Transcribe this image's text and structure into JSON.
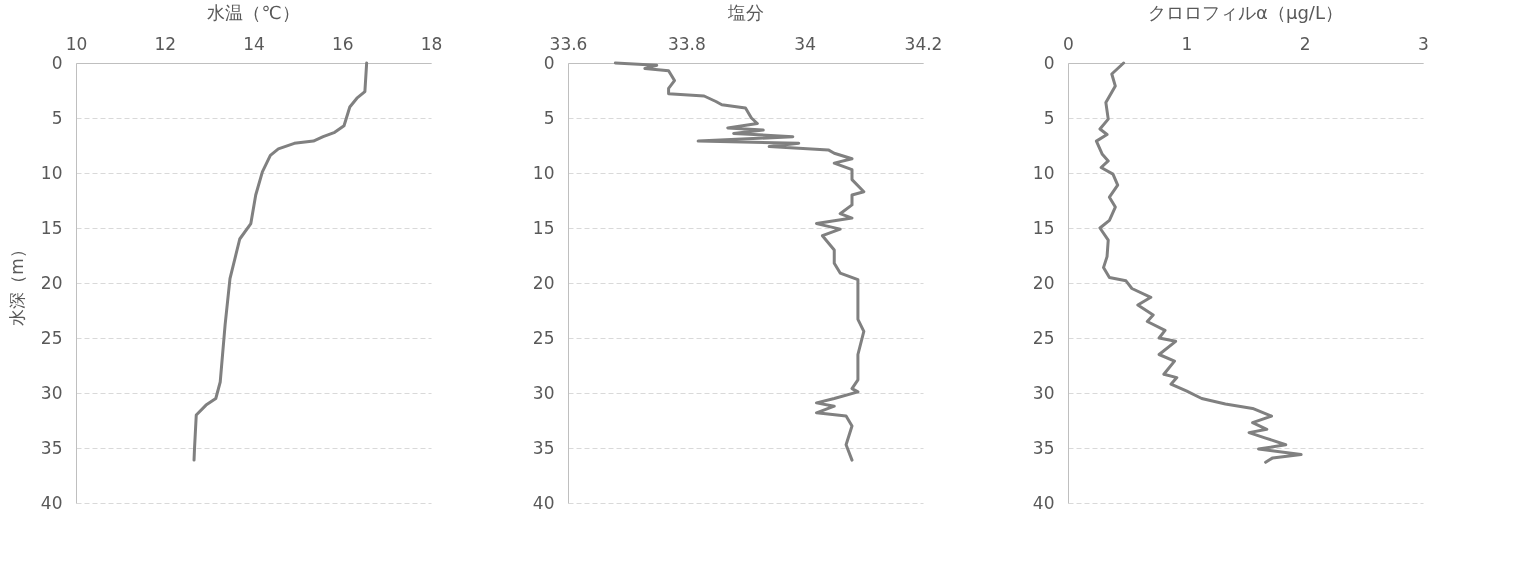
{
  "chart_data": [
    {
      "type": "line",
      "title": "水温（℃）",
      "ylabel": "水深（m）",
      "xlim": [
        10,
        18
      ],
      "xticks": [
        10,
        12,
        14,
        16,
        18
      ],
      "ylim": [
        40,
        0
      ],
      "yticks": [
        0,
        5,
        10,
        15,
        20,
        25,
        30,
        35,
        40
      ],
      "grid": "y",
      "line_style": "solid",
      "marker": "none",
      "series": [
        {
          "color": "#808080",
          "x": [
            16.55,
            16.51,
            16.33,
            16.17,
            16.04,
            15.83,
            15.57,
            15.35,
            14.92,
            14.56,
            14.38,
            14.2,
            14.05,
            13.94,
            13.69,
            13.58,
            13.47,
            13.36,
            13.25,
            13.15,
            12.93,
            12.71,
            12.67,
            12.66
          ],
          "values": [
            0,
            2.6,
            3.2,
            4.0,
            5.7,
            6.3,
            6.7,
            7.1,
            7.3,
            7.8,
            8.4,
            9.9,
            12.0,
            14.6,
            16.0,
            17.8,
            19.6,
            23.8,
            29.0,
            30.5,
            31.1,
            32.0,
            35.1,
            36.1
          ]
        }
      ]
    },
    {
      "type": "line",
      "title": "塩分",
      "xlim": [
        33.6,
        34.2
      ],
      "xticks": [
        33.6,
        33.8,
        34,
        34.2
      ],
      "ylim": [
        40,
        0
      ],
      "yticks": [
        0,
        5,
        10,
        15,
        20,
        25,
        30,
        35,
        40
      ],
      "grid": "y",
      "line_style": "solid",
      "marker": "none",
      "series": [
        {
          "color": "#808080",
          "x": [
            33.68,
            33.75,
            33.73,
            33.77,
            33.78,
            33.77,
            33.77,
            33.83,
            33.85,
            33.86,
            33.9,
            33.91,
            33.92,
            33.87,
            33.93,
            33.88,
            33.98,
            33.82,
            33.99,
            33.94,
            34.04,
            34.05,
            34.08,
            34.05,
            34.08,
            34.08,
            34.1,
            34.08,
            34.08,
            34.06,
            34.08,
            34.02,
            34.06,
            34.03,
            34.05,
            34.05,
            34.06,
            34.09,
            34.09,
            34.09,
            34.1,
            34.09,
            34.09,
            34.08,
            34.09,
            34.05,
            34.02,
            34.05,
            34.02,
            34.07,
            34.08,
            34.07,
            34.08
          ],
          "values": [
            0,
            0.2,
            0.5,
            0.7,
            1.6,
            2.3,
            2.8,
            3.0,
            3.5,
            3.8,
            4.1,
            5.0,
            5.5,
            5.9,
            6.1,
            6.4,
            6.7,
            7.1,
            7.3,
            7.6,
            7.9,
            8.2,
            8.7,
            9.1,
            9.7,
            10.6,
            11.7,
            12.0,
            12.9,
            13.7,
            14.1,
            14.6,
            15.1,
            15.7,
            17.0,
            18.2,
            19.1,
            19.7,
            21.5,
            23.3,
            24.4,
            26.5,
            28.8,
            29.6,
            29.9,
            30.5,
            30.9,
            31.2,
            31.8,
            32.1,
            33.0,
            34.7,
            36.1
          ]
        }
      ]
    },
    {
      "type": "line",
      "title": "クロロフィルα（μg/L）",
      "xlim": [
        0,
        3
      ],
      "xticks": [
        0,
        1,
        2,
        3
      ],
      "ylim": [
        40,
        0
      ],
      "yticks": [
        0,
        5,
        10,
        15,
        20,
        25,
        30,
        35,
        40
      ],
      "grid": "y",
      "line_style": "solid",
      "marker": "none",
      "series": [
        {
          "color": "#808080",
          "x": [
            0.47,
            0.37,
            0.4,
            0.32,
            0.34,
            0.27,
            0.33,
            0.24,
            0.29,
            0.34,
            0.28,
            0.38,
            0.42,
            0.35,
            0.4,
            0.35,
            0.27,
            0.34,
            0.33,
            0.3,
            0.35,
            0.49,
            0.54,
            0.7,
            0.59,
            0.72,
            0.67,
            0.82,
            0.77,
            0.91,
            0.77,
            0.9,
            0.81,
            0.92,
            0.87,
            1.0,
            1.13,
            1.33,
            1.56,
            1.72,
            1.56,
            1.68,
            1.53,
            1.67,
            1.84,
            1.61,
            1.97,
            1.73,
            1.67
          ],
          "values": [
            0,
            1.0,
            2.1,
            3.6,
            5.1,
            6.0,
            6.5,
            7.1,
            8.3,
            8.9,
            9.5,
            10.1,
            11.1,
            12.2,
            13.1,
            14.3,
            15.0,
            16.1,
            17.6,
            18.6,
            19.5,
            19.8,
            20.5,
            21.3,
            22.0,
            22.9,
            23.5,
            24.3,
            25.0,
            25.3,
            26.5,
            27.1,
            28.3,
            28.6,
            29.2,
            29.8,
            30.5,
            31.0,
            31.4,
            32.1,
            32.7,
            33.3,
            33.6,
            34.1,
            34.7,
            35.1,
            35.6,
            35.9,
            36.3
          ]
        }
      ]
    }
  ]
}
